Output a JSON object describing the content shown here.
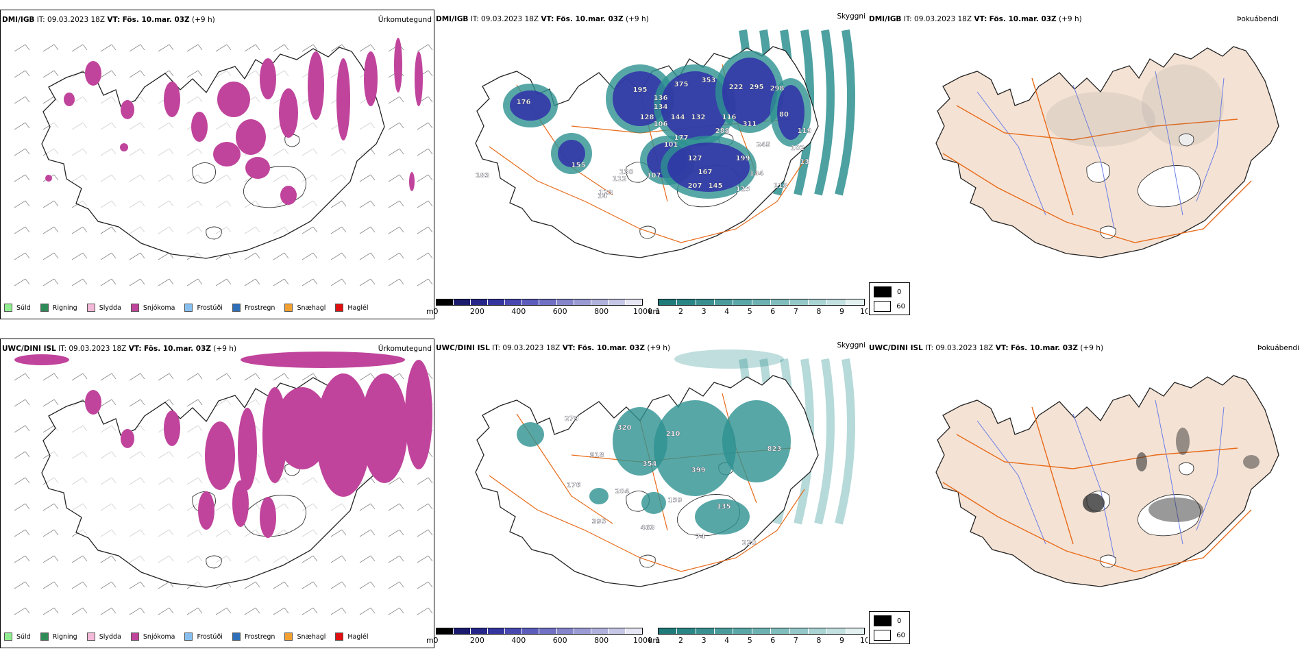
{
  "rows": [
    {
      "model": "DMI/IGB",
      "it": "IT: 09.03.2023 18Z",
      "vt_label": "VT:",
      "vt": "Fös. 10.mar. 03Z",
      "step": "(+9 h)",
      "panels": {
        "precip": {
          "name": "Úrkomutegund"
        },
        "visibility": {
          "name": "Skyggni",
          "labels": [
            "176",
            "195",
            "136",
            "375",
            "353",
            "222",
            "295",
            "298",
            "134",
            "144",
            "128",
            "132",
            "116",
            "80",
            "177",
            "106",
            "288",
            "311",
            "101",
            "127",
            "245",
            "199",
            "119",
            "102",
            "13",
            "167",
            "107",
            "112",
            "145",
            "125",
            "134",
            "113",
            "207",
            "123",
            "183",
            "155",
            "14",
            "130"
          ]
        },
        "fog": {
          "name": "Þokuábendi"
        }
      }
    },
    {
      "model": "UWC/DINI ISL",
      "it": "IT: 09.03.2023 18Z",
      "vt_label": "VT:",
      "vt": "Fös. 10.mar. 03Z",
      "step": "(+9 h)",
      "panels": {
        "precip": {
          "name": "Úrkomutegund"
        },
        "visibility": {
          "name": "Skyggni",
          "labels": [
            "279",
            "918",
            "204",
            "463",
            "210",
            "399",
            "135",
            "220",
            "823",
            "176",
            "395",
            "320",
            "354",
            "159",
            "74"
          ]
        },
        "fog": {
          "name": "Þokuábendi"
        }
      }
    }
  ],
  "precip_legend": [
    {
      "label": "Súld",
      "color": "#90ee90"
    },
    {
      "label": "Rigning",
      "color": "#2e8b57"
    },
    {
      "label": "Slydda",
      "color": "#f4b8d8"
    },
    {
      "label": "Snjókoma",
      "color": "#c0449c"
    },
    {
      "label": "Frostúði",
      "color": "#87bff0"
    },
    {
      "label": "Frostregn",
      "color": "#2f6fb8"
    },
    {
      "label": "Snæhagl",
      "color": "#f2a030"
    },
    {
      "label": "Haglél",
      "color": "#e01010"
    }
  ],
  "cloudbase_bar": {
    "unit": "m",
    "ticks": [
      "0",
      "200",
      "400",
      "600",
      "800",
      "1000"
    ],
    "colors": [
      "#000000",
      "#1a1a6e",
      "#26268a",
      "#3535a0",
      "#4848b0",
      "#5c5cbc",
      "#7070c4",
      "#8585cc",
      "#9a9ad4",
      "#b0b0dc",
      "#c6c6e6",
      "#e6e6f5"
    ]
  },
  "vis_bar": {
    "unit": "km",
    "ticks": [
      "1",
      "2",
      "3",
      "4",
      "5",
      "6",
      "7",
      "8",
      "9",
      "10"
    ],
    "colors": [
      "#1f7a7a",
      "#2a8585",
      "#3a9090",
      "#4a9c9c",
      "#5aa7a7",
      "#6db2b2",
      "#80bdbd",
      "#95c9c9",
      "#aad4d4",
      "#c2e0e0",
      "#e2f0f0"
    ]
  },
  "fog_legend": {
    "black": "0",
    "white": "60"
  },
  "colors": {
    "snow": "#c0449c",
    "vis_teal": "#2e9191",
    "cloudbase_blue": "#3030a8",
    "road": "#e86a18",
    "land": "#f4e2d4",
    "river": "#6a7ee8"
  }
}
